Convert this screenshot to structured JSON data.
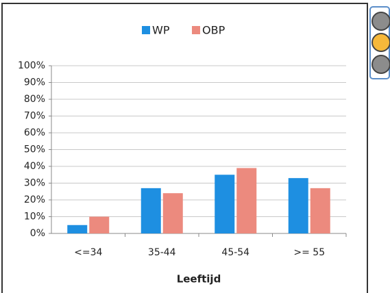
{
  "chart_data": {
    "type": "bar",
    "categories": [
      "<=34",
      "35-44",
      "45-54",
      ">= 55"
    ],
    "series": [
      {
        "name": "WP",
        "color": "#1e8fe1",
        "values": [
          5,
          27,
          35,
          33
        ]
      },
      {
        "name": "OBP",
        "color": "#ec8a7e",
        "values": [
          10,
          24,
          39,
          27
        ]
      }
    ],
    "x_label": "Leeftijd",
    "ylim": [
      0,
      100
    ],
    "yticks": [
      {
        "value": 0,
        "label": "0%"
      },
      {
        "value": 10,
        "label": "10%"
      },
      {
        "value": 20,
        "label": "20%"
      },
      {
        "value": 30,
        "label": "30%"
      },
      {
        "value": 40,
        "label": "40%"
      },
      {
        "value": 50,
        "label": "50%"
      },
      {
        "value": 60,
        "label": "60%"
      },
      {
        "value": 70,
        "label": "70%"
      },
      {
        "value": 80,
        "label": "80%"
      },
      {
        "value": 90,
        "label": "90%"
      },
      {
        "value": 100,
        "label": "100%"
      }
    ],
    "grid": true,
    "legend": "top"
  }
}
